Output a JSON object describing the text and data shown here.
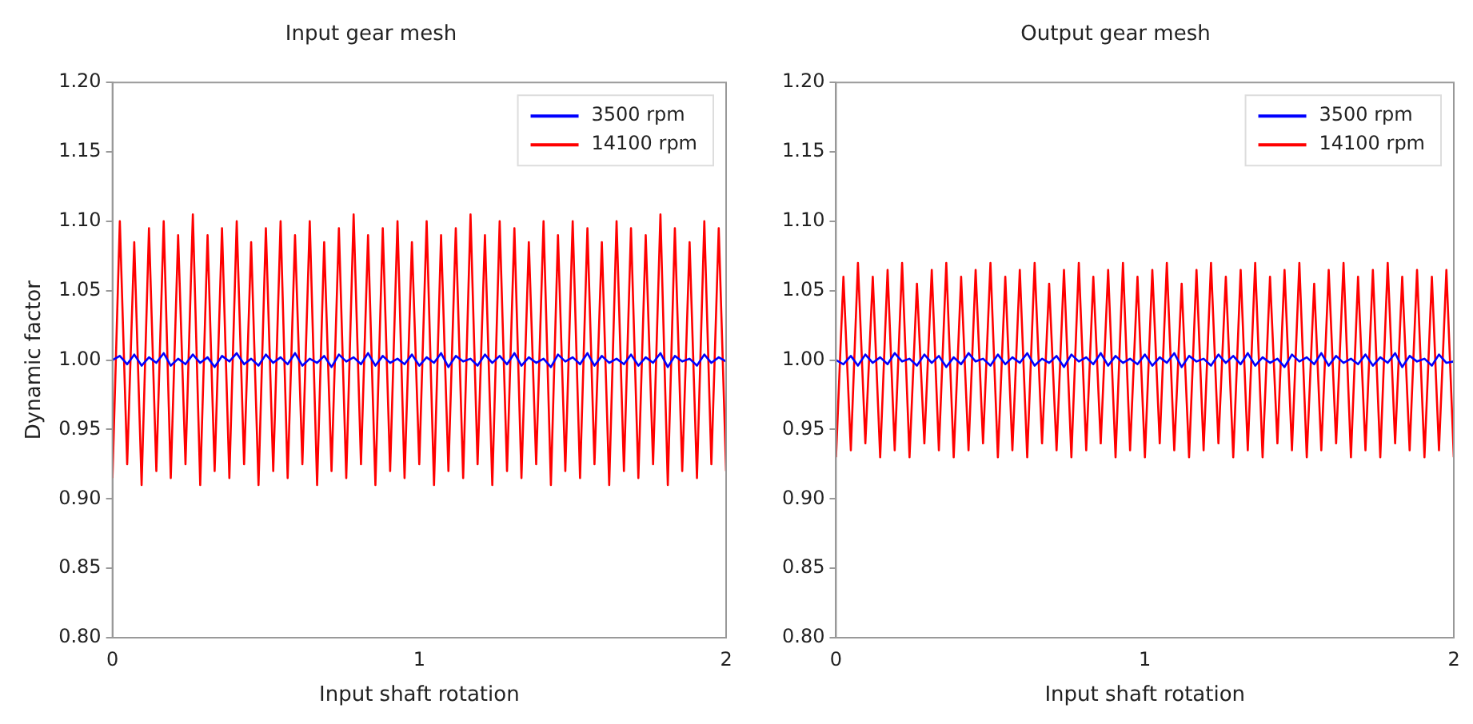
{
  "chart_data": [
    {
      "type": "line",
      "title": "Input gear mesh",
      "xlabel": "Input shaft rotation",
      "ylabel": "Dynamic factor",
      "legend": "top right",
      "x": [
        0,
        0.024,
        0.048,
        0.071,
        0.095,
        0.119,
        0.143,
        0.167,
        0.19,
        0.214,
        0.238,
        0.262,
        0.286,
        0.31,
        0.333,
        0.357,
        0.381,
        0.405,
        0.429,
        0.452,
        0.476,
        0.5,
        0.524,
        0.548,
        0.571,
        0.595,
        0.619,
        0.643,
        0.667,
        0.69,
        0.714,
        0.738,
        0.762,
        0.786,
        0.81,
        0.833,
        0.857,
        0.881,
        0.905,
        0.929,
        0.952,
        0.976,
        1,
        1.024,
        1.048,
        1.071,
        1.095,
        1.119,
        1.143,
        1.167,
        1.19,
        1.214,
        1.238,
        1.262,
        1.286,
        1.31,
        1.333,
        1.357,
        1.381,
        1.405,
        1.429,
        1.452,
        1.476,
        1.5,
        1.524,
        1.548,
        1.571,
        1.595,
        1.619,
        1.643,
        1.667,
        1.69,
        1.714,
        1.738,
        1.762,
        1.786,
        1.81,
        1.833,
        1.857,
        1.881,
        1.905,
        1.929,
        1.952,
        1.976,
        2
      ],
      "series": [
        {
          "name": "3500 rpm",
          "color": "#0000ff",
          "values": [
            1.0,
            1.003,
            0.997,
            1.004,
            0.996,
            1.002,
            0.998,
            1.005,
            0.996,
            1.001,
            0.997,
            1.004,
            0.998,
            1.002,
            0.995,
            1.003,
            0.999,
            1.005,
            0.997,
            1.001,
            0.996,
            1.004,
            0.998,
            1.002,
            0.997,
            1.005,
            0.996,
            1.001,
            0.998,
            1.003,
            0.995,
            1.004,
            0.999,
            1.002,
            0.997,
            1.005,
            0.996,
            1.003,
            0.998,
            1.001,
            0.997,
            1.004,
            0.996,
            1.002,
            0.998,
            1.005,
            0.995,
            1.003,
            0.999,
            1.001,
            0.996,
            1.004,
            0.998,
            1.003,
            0.997,
            1.005,
            0.996,
            1.002,
            0.998,
            1.001,
            0.995,
            1.004,
            0.999,
            1.002,
            0.997,
            1.005,
            0.996,
            1.003,
            0.998,
            1.001,
            0.997,
            1.004,
            0.996,
            1.002,
            0.998,
            1.005,
            0.995,
            1.003,
            0.999,
            1.001,
            0.996,
            1.004,
            0.998,
            1.002,
            0.999
          ]
        },
        {
          "name": "14100 rpm",
          "color": "#ff0000",
          "values": [
            0.915,
            1.1,
            0.925,
            1.085,
            0.91,
            1.095,
            0.92,
            1.1,
            0.915,
            1.09,
            0.925,
            1.105,
            0.91,
            1.09,
            0.92,
            1.095,
            0.915,
            1.1,
            0.925,
            1.085,
            0.91,
            1.095,
            0.92,
            1.1,
            0.915,
            1.09,
            0.925,
            1.1,
            0.91,
            1.085,
            0.92,
            1.095,
            0.915,
            1.105,
            0.925,
            1.09,
            0.91,
            1.095,
            0.92,
            1.1,
            0.915,
            1.085,
            0.925,
            1.1,
            0.91,
            1.09,
            0.92,
            1.095,
            0.915,
            1.105,
            0.925,
            1.09,
            0.91,
            1.1,
            0.92,
            1.095,
            0.915,
            1.085,
            0.925,
            1.1,
            0.91,
            1.09,
            0.92,
            1.1,
            0.915,
            1.095,
            0.925,
            1.085,
            0.91,
            1.1,
            0.92,
            1.095,
            0.915,
            1.09,
            0.925,
            1.105,
            0.91,
            1.095,
            0.92,
            1.085,
            0.915,
            1.1,
            0.925,
            1.095,
            0.92
          ]
        }
      ],
      "xlim": [
        0,
        2
      ],
      "xticks": [
        0,
        1,
        2
      ],
      "ylim": [
        0.8,
        1.2
      ],
      "yticks": [
        {
          "value": 0.8,
          "label": "0.80"
        },
        {
          "value": 0.85,
          "label": "0.85"
        },
        {
          "value": 0.9,
          "label": "0.90"
        },
        {
          "value": 0.95,
          "label": "0.95"
        },
        {
          "value": 1.0,
          "label": "1.00"
        },
        {
          "value": 1.05,
          "label": "1.05"
        },
        {
          "value": 1.1,
          "label": "1.10"
        },
        {
          "value": 1.15,
          "label": "1.15"
        },
        {
          "value": 1.2,
          "label": "1.20"
        }
      ]
    },
    {
      "type": "line",
      "title": "Output gear mesh",
      "xlabel": "Input shaft rotation",
      "legend": "top right",
      "x": [
        0,
        0.024,
        0.048,
        0.071,
        0.095,
        0.119,
        0.143,
        0.167,
        0.19,
        0.214,
        0.238,
        0.262,
        0.286,
        0.31,
        0.333,
        0.357,
        0.381,
        0.405,
        0.429,
        0.452,
        0.476,
        0.5,
        0.524,
        0.548,
        0.571,
        0.595,
        0.619,
        0.643,
        0.667,
        0.69,
        0.714,
        0.738,
        0.762,
        0.786,
        0.81,
        0.833,
        0.857,
        0.881,
        0.905,
        0.929,
        0.952,
        0.976,
        1,
        1.024,
        1.048,
        1.071,
        1.095,
        1.119,
        1.143,
        1.167,
        1.19,
        1.214,
        1.238,
        1.262,
        1.286,
        1.31,
        1.333,
        1.357,
        1.381,
        1.405,
        1.429,
        1.452,
        1.476,
        1.5,
        1.524,
        1.548,
        1.571,
        1.595,
        1.619,
        1.643,
        1.667,
        1.69,
        1.714,
        1.738,
        1.762,
        1.786,
        1.81,
        1.833,
        1.857,
        1.881,
        1.905,
        1.929,
        1.952,
        1.976,
        2
      ],
      "series": [
        {
          "name": "3500 rpm",
          "color": "#0000ff",
          "values": [
            1.0,
            0.997,
            1.003,
            0.996,
            1.004,
            0.998,
            1.002,
            0.997,
            1.005,
            0.999,
            1.001,
            0.996,
            1.004,
            0.998,
            1.003,
            0.995,
            1.002,
            0.997,
            1.005,
            0.999,
            1.001,
            0.996,
            1.004,
            0.997,
            1.002,
            0.998,
            1.005,
            0.996,
            1.001,
            0.998,
            1.003,
            0.995,
            1.004,
            0.999,
            1.002,
            0.997,
            1.005,
            0.996,
            1.003,
            0.998,
            1.001,
            0.997,
            1.004,
            0.996,
            1.002,
            0.998,
            1.005,
            0.995,
            1.003,
            0.999,
            1.001,
            0.996,
            1.004,
            0.998,
            1.003,
            0.997,
            1.005,
            0.996,
            1.002,
            0.998,
            1.001,
            0.995,
            1.004,
            0.999,
            1.002,
            0.997,
            1.005,
            0.996,
            1.003,
            0.998,
            1.001,
            0.997,
            1.004,
            0.996,
            1.002,
            0.998,
            1.005,
            0.995,
            1.003,
            0.999,
            1.001,
            0.996,
            1.004,
            0.998,
            0.999
          ]
        },
        {
          "name": "14100 rpm",
          "color": "#ff0000",
          "values": [
            0.93,
            1.06,
            0.935,
            1.07,
            0.94,
            1.06,
            0.93,
            1.065,
            0.935,
            1.07,
            0.93,
            1.055,
            0.94,
            1.065,
            0.935,
            1.07,
            0.93,
            1.06,
            0.935,
            1.065,
            0.94,
            1.07,
            0.93,
            1.06,
            0.935,
            1.065,
            0.93,
            1.07,
            0.94,
            1.055,
            0.935,
            1.065,
            0.93,
            1.07,
            0.935,
            1.06,
            0.94,
            1.065,
            0.93,
            1.07,
            0.935,
            1.06,
            0.93,
            1.065,
            0.94,
            1.07,
            0.935,
            1.055,
            0.93,
            1.065,
            0.935,
            1.07,
            0.94,
            1.06,
            0.93,
            1.065,
            0.935,
            1.07,
            0.93,
            1.06,
            0.94,
            1.065,
            0.935,
            1.07,
            0.93,
            1.055,
            0.935,
            1.065,
            0.94,
            1.07,
            0.93,
            1.06,
            0.935,
            1.065,
            0.93,
            1.07,
            0.94,
            1.06,
            0.935,
            1.065,
            0.93,
            1.06,
            0.935,
            1.065,
            0.93
          ]
        }
      ],
      "xlim": [
        0,
        2
      ],
      "xticks": [
        0,
        1,
        2
      ],
      "ylim": [
        0.8,
        1.2
      ],
      "yticks": [
        {
          "value": 0.8,
          "label": "0.80"
        },
        {
          "value": 0.85,
          "label": "0.85"
        },
        {
          "value": 0.9,
          "label": "0.90"
        },
        {
          "value": 0.95,
          "label": "0.95"
        },
        {
          "value": 1.0,
          "label": "1.00"
        },
        {
          "value": 1.05,
          "label": "1.05"
        },
        {
          "value": 1.1,
          "label": "1.10"
        },
        {
          "value": 1.15,
          "label": "1.15"
        },
        {
          "value": 1.2,
          "label": "1.20"
        }
      ]
    }
  ]
}
